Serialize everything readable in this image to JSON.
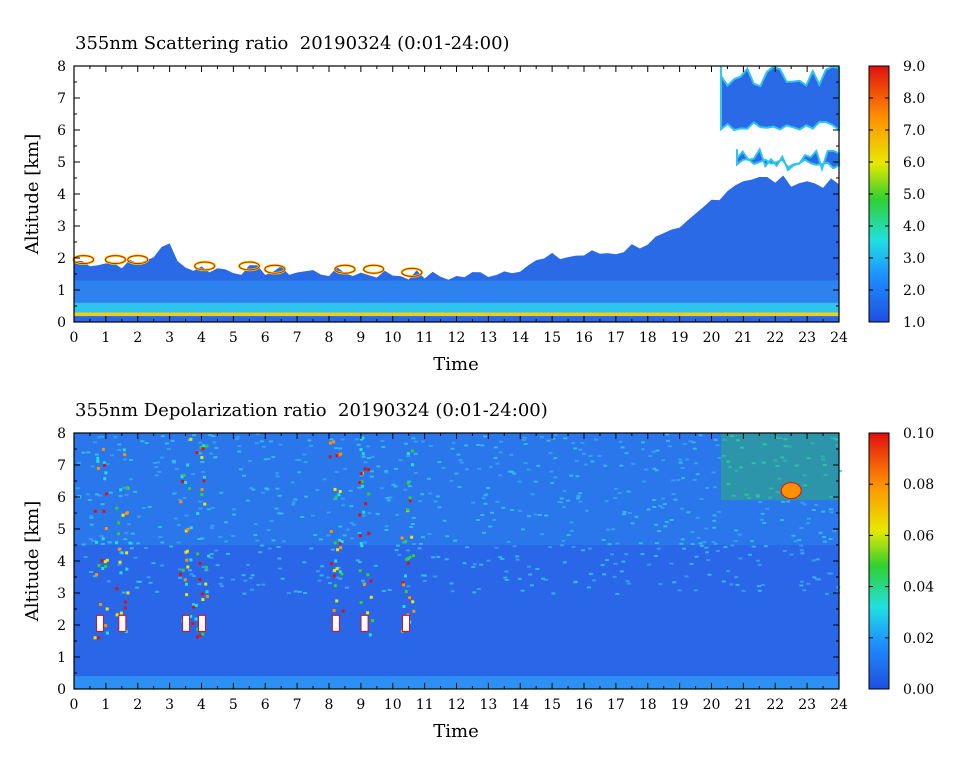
{
  "chart_data": [
    {
      "type": "heatmap",
      "title": "355nm Scattering ratio  20190324 (0:01-24:00)",
      "xlabel": "Time",
      "ylabel": "Altitude [km]",
      "xlim": [
        0,
        24
      ],
      "ylim": [
        0,
        8
      ],
      "x_ticks": [
        "0",
        "1",
        "2",
        "3",
        "4",
        "5",
        "6",
        "7",
        "8",
        "9",
        "10",
        "11",
        "12",
        "13",
        "14",
        "15",
        "16",
        "17",
        "18",
        "19",
        "20",
        "21",
        "22",
        "23",
        "24"
      ],
      "y_ticks": [
        "0",
        "1",
        "2",
        "3",
        "4",
        "5",
        "6",
        "7",
        "8"
      ],
      "colorbar": {
        "min": 1.0,
        "max": 9.0,
        "tick_labels": [
          "1.0",
          "2.0",
          "3.0",
          "4.0",
          "5.0",
          "6.0",
          "7.0",
          "8.0",
          "9.0"
        ],
        "colors": [
          "#1e4fe0",
          "#1e90ff",
          "#20e0e0",
          "#30d030",
          "#e8e800",
          "#ff9000",
          "#e01010"
        ]
      },
      "features": {
        "aerosol_layer_top_km": [
          [
            0,
            1.9
          ],
          [
            2,
            1.8
          ],
          [
            3,
            2.4
          ],
          [
            3.5,
            1.7
          ],
          [
            6,
            1.6
          ],
          [
            10,
            1.5
          ],
          [
            12,
            1.4
          ],
          [
            13.5,
            1.6
          ],
          [
            15,
            2.0
          ],
          [
            17,
            2.2
          ],
          [
            19,
            2.8
          ],
          [
            20,
            3.8
          ],
          [
            21,
            4.5
          ],
          [
            22.5,
            4.4
          ],
          [
            24,
            4.3
          ]
        ],
        "cloud_bands": [
          {
            "t_start": 20.3,
            "t_end": 24,
            "alt_bottom": 6.0,
            "alt_top": 8.0
          },
          {
            "t_start": 20.8,
            "t_end": 24,
            "alt_bottom": 4.8,
            "alt_top": 5.4
          }
        ],
        "strong_edge_times": [
          0.0,
          1.0,
          1.7,
          3.8,
          5.2,
          6.0,
          8.2,
          9.1,
          10.3
        ]
      }
    },
    {
      "type": "heatmap",
      "title": "355nm Depolarization ratio  20190324 (0:01-24:00)",
      "xlabel": "Time",
      "ylabel": "Altitude [km]",
      "xlim": [
        0,
        24
      ],
      "ylim": [
        0,
        8
      ],
      "x_ticks": [
        "0",
        "1",
        "2",
        "3",
        "4",
        "5",
        "6",
        "7",
        "8",
        "9",
        "10",
        "11",
        "12",
        "13",
        "14",
        "15",
        "16",
        "17",
        "18",
        "19",
        "20",
        "21",
        "22",
        "23",
        "24"
      ],
      "y_ticks": [
        "0",
        "1",
        "2",
        "3",
        "4",
        "5",
        "6",
        "7",
        "8"
      ],
      "colorbar": {
        "min": 0.0,
        "max": 0.1,
        "tick_labels": [
          "0.00",
          "0.02",
          "0.04",
          "0.06",
          "0.08",
          "0.10"
        ],
        "colors": [
          "#1e4fe0",
          "#1e90ff",
          "#20e0e0",
          "#30d030",
          "#e8e800",
          "#ff9000",
          "#e01010"
        ]
      },
      "features": {
        "high_depol_columns_h": [
          0.8,
          1.5,
          3.5,
          4.0,
          8.2,
          9.1,
          10.4
        ],
        "cloud_bands": [
          {
            "t_start": 20.3,
            "t_end": 24,
            "alt_bottom": 5.9,
            "alt_top": 8.0
          }
        ]
      }
    }
  ]
}
